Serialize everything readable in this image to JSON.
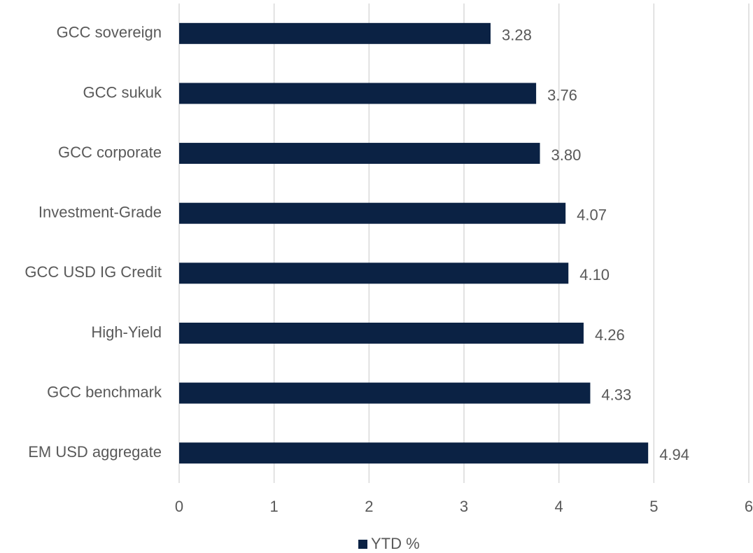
{
  "chart_data": {
    "type": "bar",
    "orientation": "horizontal",
    "categories": [
      "GCC sovereign",
      "GCC sukuk",
      "GCC corporate",
      "Investment-Grade",
      "GCC USD IG Credit",
      "High-Yield",
      "GCC benchmark",
      "EM USD aggregate"
    ],
    "series": [
      {
        "name": "YTD %",
        "color": "#0b2244",
        "values": [
          3.28,
          3.76,
          3.8,
          4.07,
          4.1,
          4.26,
          4.33,
          4.94
        ],
        "value_labels": [
          "3.28",
          "3.76",
          "3.80",
          "4.07",
          "4.10",
          "4.26",
          "4.33",
          "4.94"
        ]
      }
    ],
    "xlim": [
      0,
      6
    ],
    "xticks": [
      0,
      1,
      2,
      3,
      4,
      5,
      6
    ],
    "grid": true,
    "legend": "bottom"
  }
}
